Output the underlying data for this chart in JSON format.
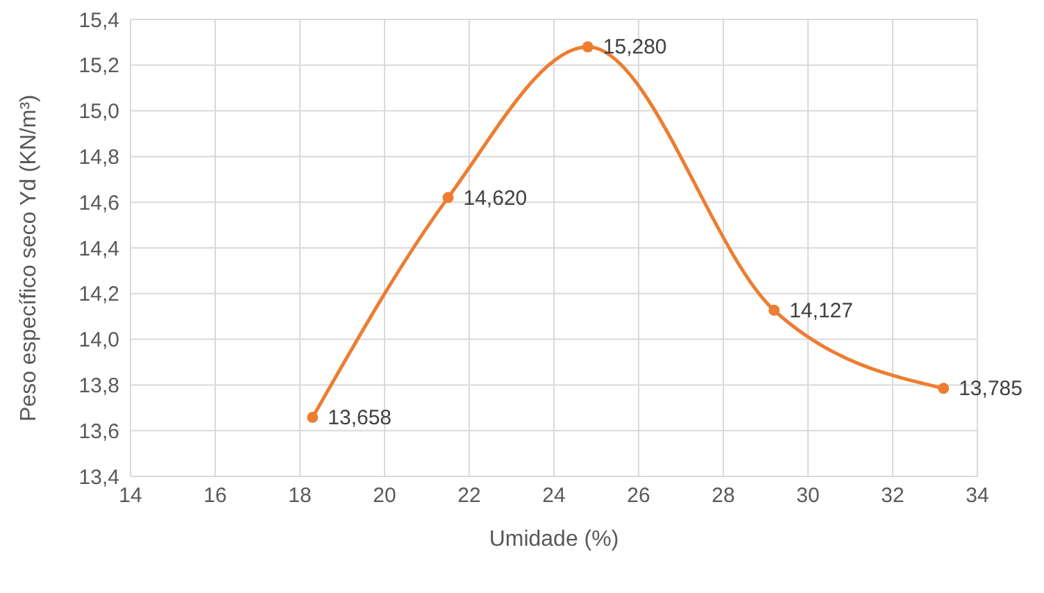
{
  "chart_data": {
    "type": "line",
    "xlabel": "Umidade (%)",
    "ylabel": "Peso específico seco Yd (KN/m³)",
    "x": [
      18.3,
      21.5,
      24.8,
      29.2,
      33.2
    ],
    "series": [
      {
        "color": "#ed7d31",
        "values": [
          13.658,
          14.62,
          15.28,
          14.127,
          13.785
        ]
      }
    ],
    "xlim": [
      14,
      34
    ],
    "xticks": [
      14,
      16,
      18,
      20,
      22,
      24,
      26,
      28,
      30,
      32,
      34
    ],
    "ylim": [
      13.4,
      15.4
    ],
    "yticks": [
      {
        "value": 13.4,
        "label": "13,4"
      },
      {
        "value": 13.6,
        "label": "13,6"
      },
      {
        "value": 13.8,
        "label": "13,8"
      },
      {
        "value": 14.0,
        "label": "14,0"
      },
      {
        "value": 14.2,
        "label": "14,2"
      },
      {
        "value": 14.4,
        "label": "14,4"
      },
      {
        "value": 14.6,
        "label": "14,6"
      },
      {
        "value": 14.8,
        "label": "14,8"
      },
      {
        "value": 15.0,
        "label": "15,0"
      },
      {
        "value": 15.2,
        "label": "15,2"
      },
      {
        "value": 15.4,
        "label": "15,4"
      }
    ],
    "value_labels": [
      "13,658",
      "14,620",
      "15,280",
      "14,127",
      "13,785"
    ],
    "grid": true,
    "marker": "circle",
    "line_style": "solid",
    "legend": false
  }
}
